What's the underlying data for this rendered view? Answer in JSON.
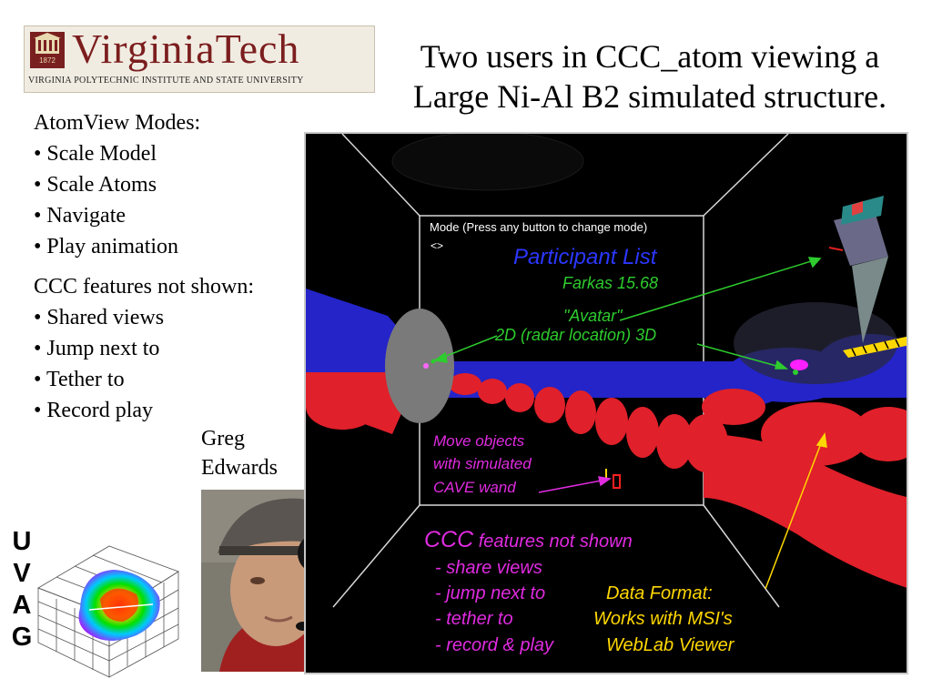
{
  "logo": {
    "seal_year": "1872",
    "wordmark": "VirginiaTech",
    "subtitle": "VIRGINIA POLYTECHNIC INSTITUTE AND STATE UNIVERSITY"
  },
  "title": {
    "line1": "Two users in CCC_atom viewing a",
    "line2": "Large Ni-Al B2 simulated structure."
  },
  "atomview": {
    "heading": "AtomView Modes:",
    "items": [
      "• Scale Model",
      "• Scale Atoms",
      "• Navigate",
      "• Play animation"
    ]
  },
  "ccc_not_shown": {
    "heading": "CCC features not shown:",
    "items": [
      "• Shared views",
      "• Jump next to",
      "• Tether to",
      "• Record play"
    ]
  },
  "credit": {
    "line1": "Greg",
    "line2": "Edwards"
  },
  "uvag": [
    "U",
    "V",
    "A",
    "G"
  ],
  "screen": {
    "mode_line": "Mode (Press any button to change mode)",
    "mode_symbol": "<>",
    "participant_list": "Participant List",
    "farkas": "Farkas 15.68",
    "avatar": "\"Avatar\"",
    "radar": "2D (radar location) 3D",
    "move_lines": [
      "Move objects",
      "with simulated",
      "CAVE wand"
    ],
    "ccc_head": "CCC",
    "ccc_head_rest": " features not shown",
    "ccc_items": [
      "- share views",
      "- jump next to",
      "- tether to",
      "- record & play"
    ],
    "data_format": [
      "Data Format:",
      "Works with MSI's",
      "WebLab Viewer"
    ],
    "colors": {
      "participant_blue": "#2b37ff",
      "label_green": "#2ecc2e",
      "label_magenta": "#e02be0",
      "label_yellow": "#ffd700",
      "atom_red": "#e0202a",
      "atom_blue": "#2424c8"
    }
  }
}
